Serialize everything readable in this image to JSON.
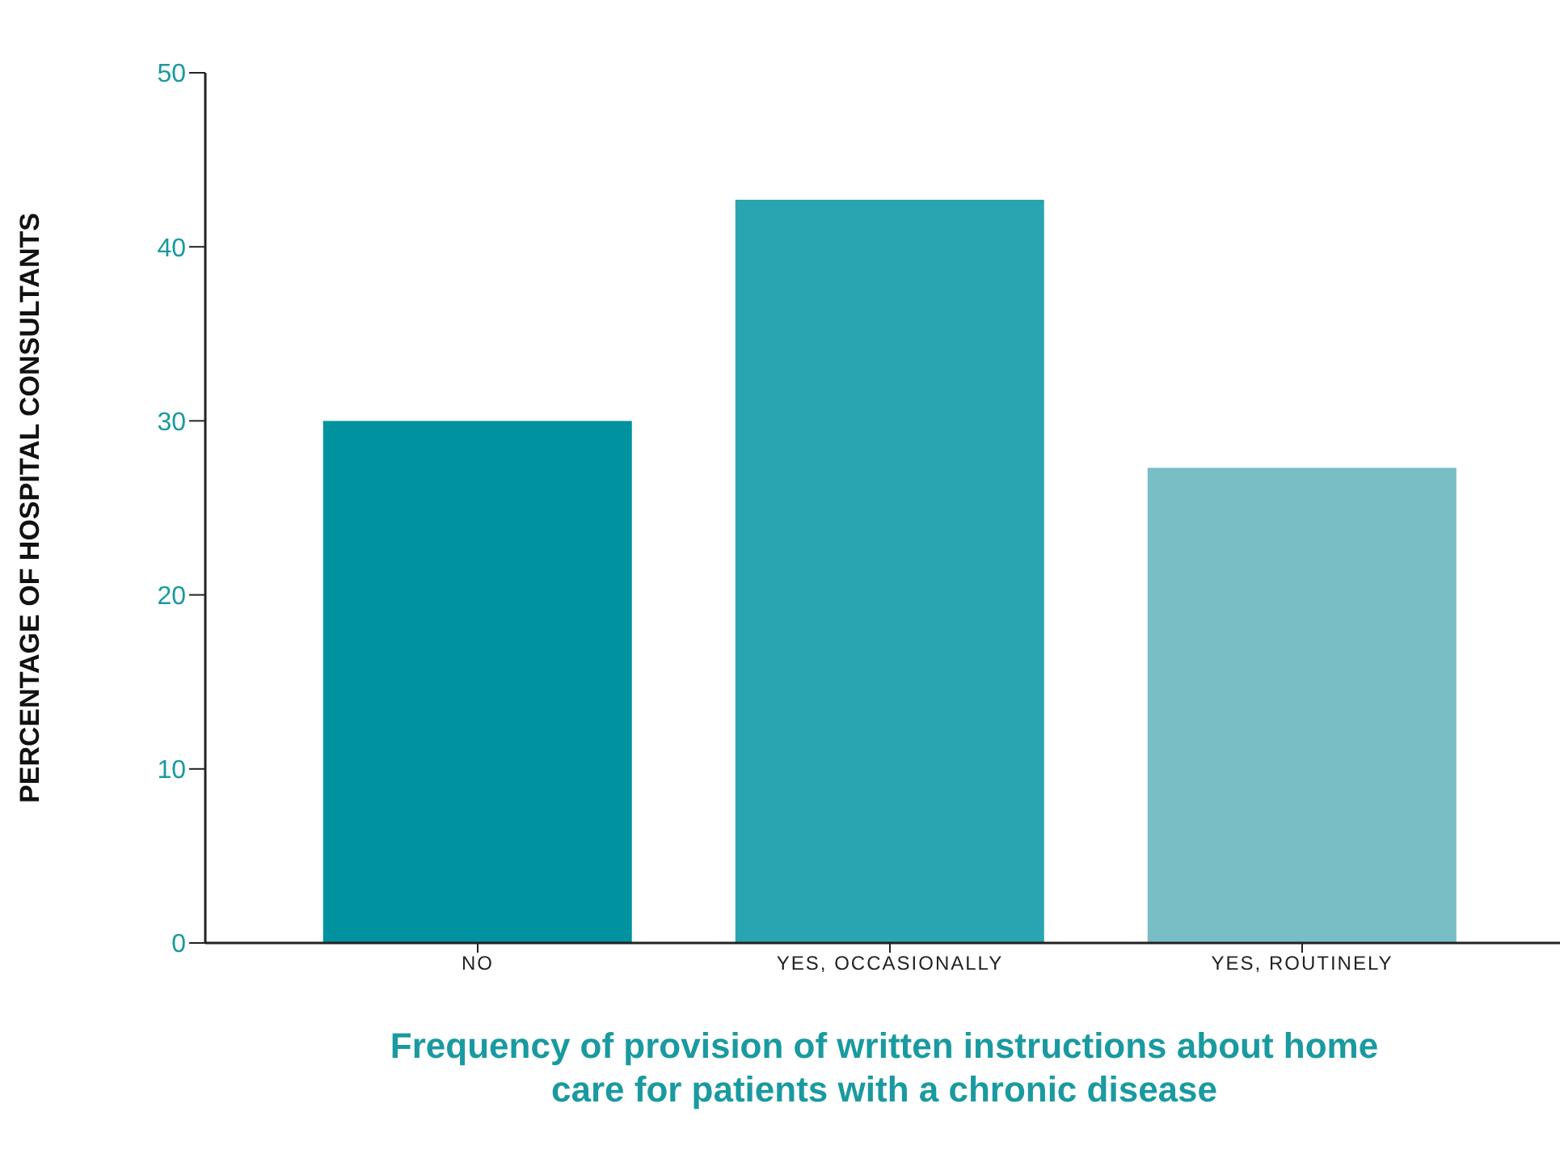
{
  "chart_data": {
    "type": "bar",
    "ylabel": "PERCENTAGE OF HOSPITAL CONSULTANTS",
    "xlabel": "Frequency of provision of written instructions about home care for patients with a chronic disease",
    "categories": [
      "NO",
      "YES, OCCASIONALLY",
      "YES, ROUTINELY"
    ],
    "values": [
      30,
      42.7,
      27.3
    ],
    "colors": [
      "#00929f",
      "#29a5b1",
      "#79bdc5"
    ],
    "ylim": [
      0,
      50
    ],
    "yticks": [
      0,
      10,
      20,
      30,
      40,
      50
    ],
    "grid": false,
    "legend": false
  }
}
